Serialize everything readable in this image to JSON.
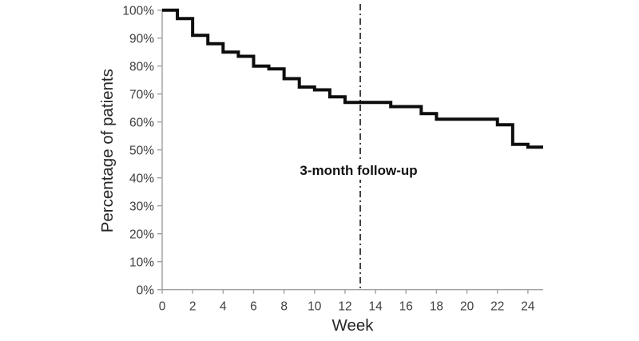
{
  "chart_data": {
    "type": "line",
    "subtype": "step-survival",
    "title": "",
    "xlabel": "Week",
    "ylabel": "Percentage of patients",
    "xlim": [
      0,
      25
    ],
    "ylim_percent": [
      0,
      100
    ],
    "grid": false,
    "legend": false,
    "x_ticks": [
      {
        "value": 0,
        "label": "0"
      },
      {
        "value": 2,
        "label": "2"
      },
      {
        "value": 4,
        "label": "4"
      },
      {
        "value": 6,
        "label": "6"
      },
      {
        "value": 8,
        "label": "8"
      },
      {
        "value": 10,
        "label": "10"
      },
      {
        "value": 12,
        "label": "12"
      },
      {
        "value": 14,
        "label": "14"
      },
      {
        "value": 16,
        "label": "16"
      },
      {
        "value": 18,
        "label": "18"
      },
      {
        "value": 20,
        "label": "20"
      },
      {
        "value": 22,
        "label": "22"
      },
      {
        "value": 24,
        "label": "24"
      }
    ],
    "y_ticks": [
      {
        "value": 0,
        "label": "0%"
      },
      {
        "value": 10,
        "label": "10%"
      },
      {
        "value": 20,
        "label": "20%"
      },
      {
        "value": 30,
        "label": "30%"
      },
      {
        "value": 40,
        "label": "40%"
      },
      {
        "value": 50,
        "label": "50%"
      },
      {
        "value": 60,
        "label": "60%"
      },
      {
        "value": 70,
        "label": "70%"
      },
      {
        "value": 80,
        "label": "80%"
      },
      {
        "value": 90,
        "label": "90%"
      },
      {
        "value": 100,
        "label": "100%"
      }
    ],
    "series": [
      {
        "name": "percentage-of-patients-step-curve",
        "start": {
          "week": 0,
          "percent": 100
        },
        "steps": [
          {
            "week": 1,
            "percent": 97
          },
          {
            "week": 2,
            "percent": 91
          },
          {
            "week": 3,
            "percent": 88
          },
          {
            "week": 4,
            "percent": 85
          },
          {
            "week": 5,
            "percent": 83.5
          },
          {
            "week": 6,
            "percent": 80
          },
          {
            "week": 7,
            "percent": 79
          },
          {
            "week": 8,
            "percent": 75.5
          },
          {
            "week": 9,
            "percent": 72.5
          },
          {
            "week": 10,
            "percent": 71.5
          },
          {
            "week": 11,
            "percent": 69
          },
          {
            "week": 12,
            "percent": 67
          },
          {
            "week": 15,
            "percent": 65.5
          },
          {
            "week": 17,
            "percent": 63
          },
          {
            "week": 18,
            "percent": 61
          },
          {
            "week": 22,
            "percent": 59
          },
          {
            "week": 23,
            "percent": 52
          },
          {
            "week": 24,
            "percent": 51
          }
        ],
        "end_week": 25
      }
    ],
    "reference_line": {
      "week": 13,
      "style": "dash-dot"
    },
    "annotation": {
      "text": "3-month follow-up",
      "week": 13
    }
  },
  "colors": {
    "background": "#ffffff",
    "axis": "#a0a0a0",
    "tick_label": "#404040",
    "axis_title": "#262626",
    "curve": "#0d0d0d",
    "reference_line": "#1a1a1a",
    "annotation_text": "#111111"
  }
}
